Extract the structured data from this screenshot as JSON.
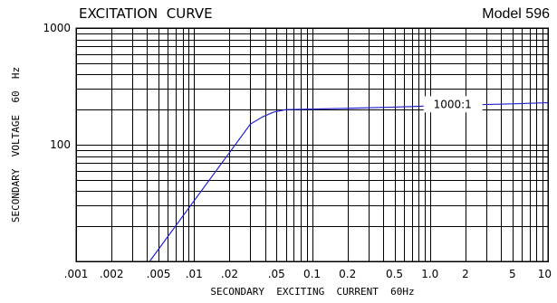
{
  "chart_data": {
    "type": "line",
    "title": "EXCITATION  CURVE",
    "subtitle": "Model 596",
    "xlabel": "SECONDARY  EXCITING  CURRENT  60Hz",
    "ylabel": "SECONDARY  VOLTAGE  60  Hz",
    "xscale": "log",
    "yscale": "log",
    "xlim": [
      0.001,
      10
    ],
    "ylim": [
      10,
      1000
    ],
    "x_ticks": [
      {
        "value": 0.001,
        "label": ".001"
      },
      {
        "value": 0.002,
        "label": ".002"
      },
      {
        "value": 0.005,
        "label": ".005"
      },
      {
        "value": 0.01,
        "label": ".01"
      },
      {
        "value": 0.02,
        "label": ".02"
      },
      {
        "value": 0.05,
        "label": ".05"
      },
      {
        "value": 0.1,
        "label": "0.1"
      },
      {
        "value": 0.2,
        "label": "0.2"
      },
      {
        "value": 0.5,
        "label": "0.5"
      },
      {
        "value": 1,
        "label": "1.0"
      },
      {
        "value": 2,
        "label": "2"
      },
      {
        "value": 5,
        "label": "5"
      },
      {
        "value": 10,
        "label": "10"
      }
    ],
    "y_ticks": [
      {
        "value": 100,
        "label": "100"
      },
      {
        "value": 1000,
        "label": "1000"
      }
    ],
    "grid": true,
    "series": [
      {
        "name": "1000:1",
        "color": "#2020d0",
        "points": [
          [
            0.0042,
            10
          ],
          [
            0.03,
            150
          ],
          [
            0.038,
            173
          ],
          [
            0.047,
            190
          ],
          [
            0.06,
            200
          ],
          [
            0.1,
            202
          ],
          [
            0.2,
            205
          ],
          [
            0.5,
            210
          ],
          [
            1.0,
            215
          ],
          [
            2.0,
            219
          ],
          [
            5.0,
            224
          ],
          [
            10.0,
            229
          ]
        ]
      }
    ],
    "annotations": [
      {
        "text": "1000:1",
        "x": 1.5,
        "y": 226
      }
    ]
  }
}
